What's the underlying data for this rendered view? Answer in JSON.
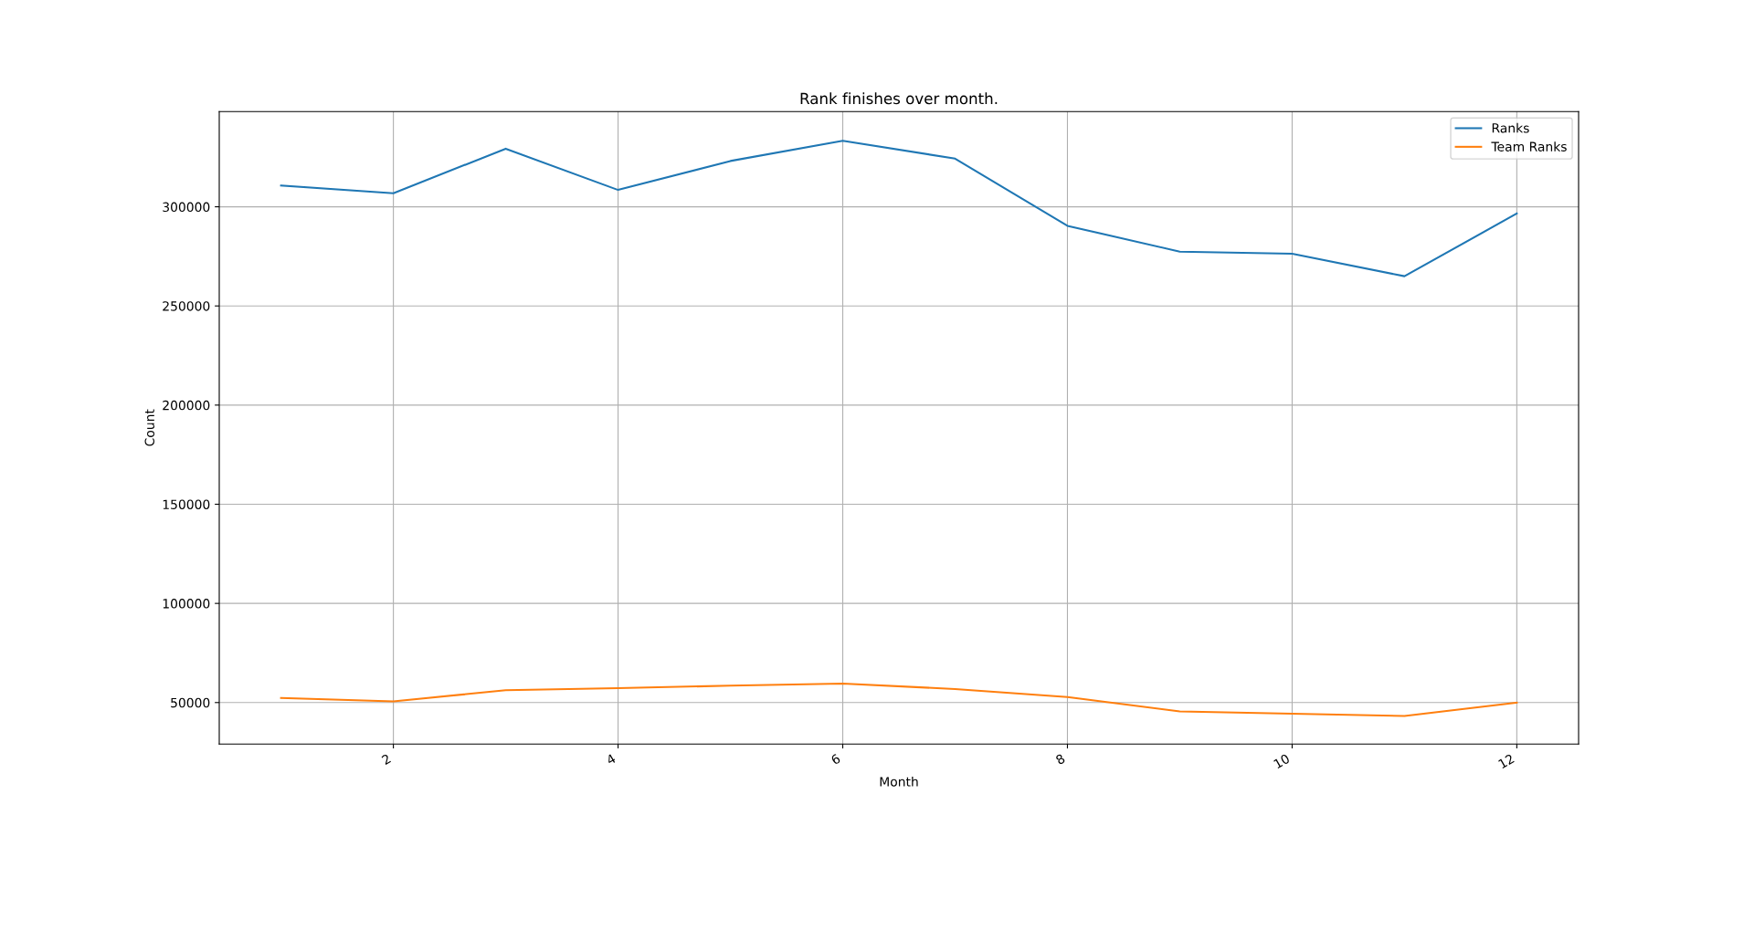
{
  "chart_data": {
    "type": "line",
    "title": "Rank finishes over month.",
    "xlabel": "Month",
    "ylabel": "Count",
    "x": [
      1,
      2,
      3,
      4,
      5,
      6,
      7,
      8,
      9,
      10,
      11,
      12
    ],
    "series": [
      {
        "name": "Ranks",
        "color": "#1f77b4",
        "values": [
          310700,
          306800,
          329300,
          308500,
          323100,
          333300,
          324300,
          290400,
          277400,
          276300,
          265000,
          296600
        ]
      },
      {
        "name": "Team Ranks",
        "color": "#ff7f0e",
        "values": [
          52300,
          50600,
          56200,
          57300,
          58500,
          59600,
          56800,
          52800,
          45500,
          44400,
          43200,
          50000
        ]
      }
    ],
    "xlim": [
      0.45,
      12.55
    ],
    "xticks": [
      2,
      4,
      6,
      8,
      10,
      12
    ],
    "ylim": [
      29100,
      348000
    ],
    "yticks": [
      50000,
      100000,
      150000,
      200000,
      250000,
      300000
    ],
    "grid": true,
    "legend": "top right",
    "marker": "none",
    "line_style": "solid"
  }
}
